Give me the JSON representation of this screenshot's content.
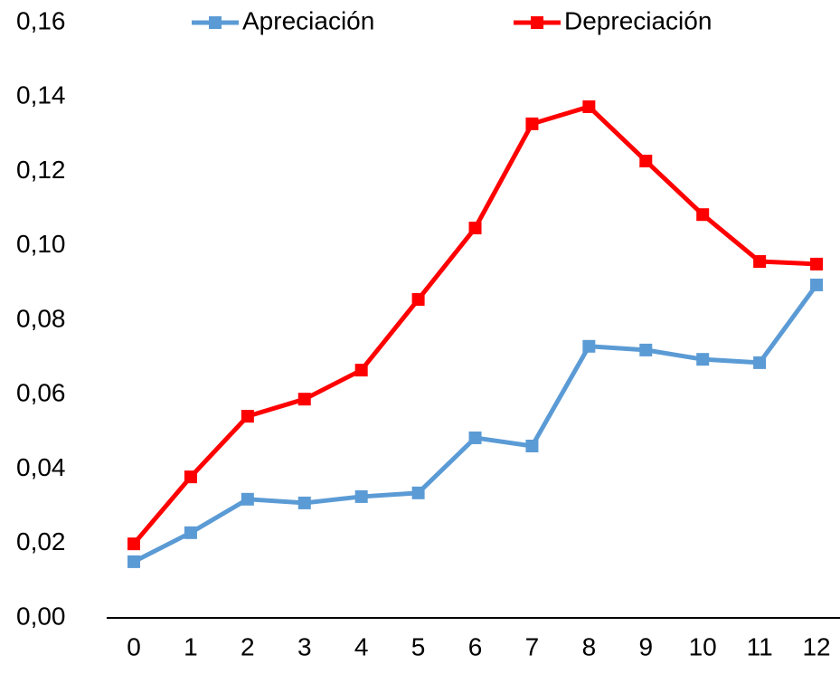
{
  "chart_data": {
    "type": "line",
    "categories": [
      "0",
      "1",
      "2",
      "3",
      "4",
      "5",
      "6",
      "7",
      "8",
      "9",
      "10",
      "11",
      "12"
    ],
    "series": [
      {
        "name": "Apreciación",
        "color": "#5b9bd5",
        "values": [
          0.0151,
          0.0229,
          0.0319,
          0.0309,
          0.0326,
          0.0336,
          0.0484,
          0.0462,
          0.073,
          0.072,
          0.0695,
          0.0686,
          0.0895
        ]
      },
      {
        "name": "Depreciación",
        "color": "#ff0000",
        "values": [
          0.0199,
          0.0379,
          0.0542,
          0.0588,
          0.0666,
          0.0856,
          0.1048,
          0.1328,
          0.1374,
          0.1228,
          0.1084,
          0.0958,
          0.0951
        ]
      }
    ],
    "ylim": [
      0,
      0.16
    ],
    "yticks": [
      {
        "value": 0,
        "label": "0,00"
      },
      {
        "value": 0.02,
        "label": "0,02"
      },
      {
        "value": 0.04,
        "label": "0,04"
      },
      {
        "value": 0.06,
        "label": "0,06"
      },
      {
        "value": 0.08,
        "label": "0,08"
      },
      {
        "value": 0.1,
        "label": "0,10"
      },
      {
        "value": 0.12,
        "label": "0,12"
      },
      {
        "value": 0.14,
        "label": "0,14"
      },
      {
        "value": 0.16,
        "label": "0,16"
      }
    ],
    "legend": "top"
  }
}
